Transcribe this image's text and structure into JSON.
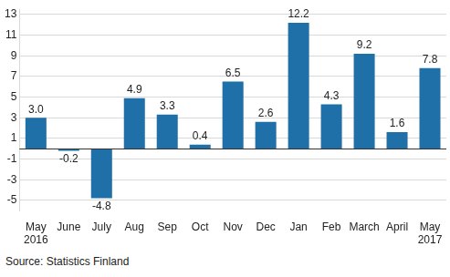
{
  "chart_data": {
    "type": "bar",
    "categories": [
      "May 2016",
      "June",
      "July",
      "Aug",
      "Sep",
      "Oct",
      "Nov",
      "Dec",
      "Jan",
      "Feb",
      "March",
      "April",
      "May 2017"
    ],
    "values": [
      3.0,
      -0.2,
      -4.8,
      4.9,
      3.3,
      0.4,
      6.5,
      2.6,
      12.2,
      4.3,
      9.2,
      1.6,
      7.8
    ],
    "value_labels": [
      "3.0",
      "-0.2",
      "-4.8",
      "4.9",
      "3.3",
      "0.4",
      "6.5",
      "2.6",
      "12.2",
      "4.3",
      "9.2",
      "1.6",
      "7.8"
    ],
    "color": "#1f6fa8",
    "ylim": [
      -6,
      13.5
    ],
    "yticks": [
      -5,
      -3,
      -1,
      1,
      3,
      5,
      7,
      9,
      11,
      13
    ],
    "grid": true,
    "data_labels": true,
    "source": "Source: Statistics Finland"
  }
}
